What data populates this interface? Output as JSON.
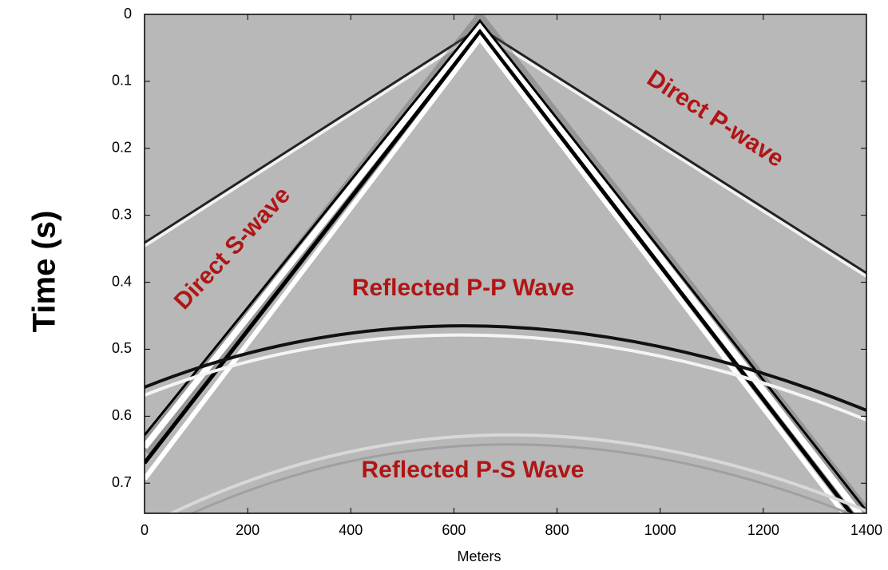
{
  "chart_data": {
    "type": "image",
    "xlabel": "Meters",
    "ylabel": "Time (s)",
    "xlim": [
      0,
      1400
    ],
    "ylim": [
      0,
      0.745
    ],
    "y_reversed": true,
    "xticks": [
      0,
      200,
      400,
      600,
      800,
      1000,
      1200,
      1400
    ],
    "yticks": [
      0,
      0.1,
      0.2,
      0.3,
      0.4,
      0.5,
      0.6,
      0.7
    ],
    "annotations": [
      "Direct P-wave",
      "Direct S-wave",
      "Reflected P-P Wave",
      "Reflected P-S Wave"
    ]
  }
}
